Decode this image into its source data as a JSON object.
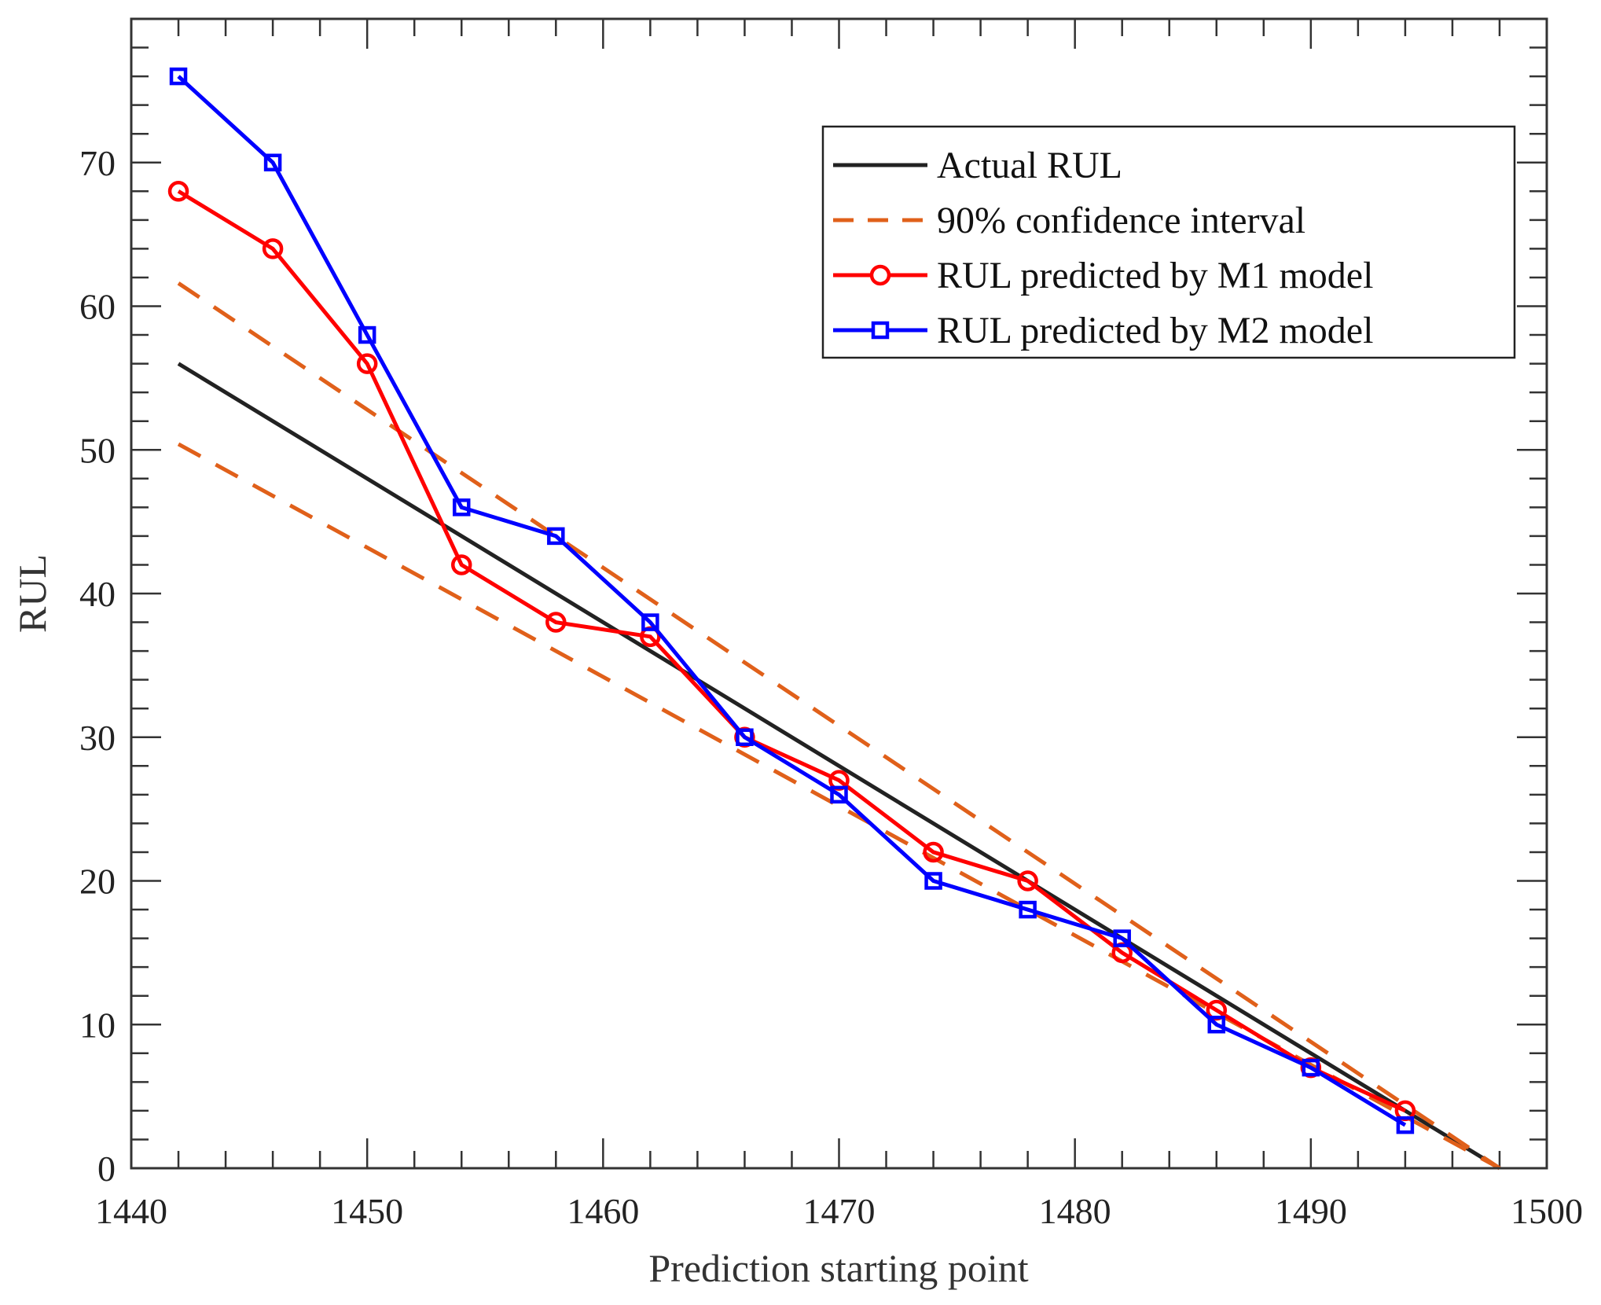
{
  "chart_data": {
    "type": "line",
    "title": "",
    "xlabel": "Prediction starting point",
    "ylabel": "RUL",
    "xlim": [
      1440,
      1500
    ],
    "ylim": [
      0,
      80
    ],
    "xticks": [
      1440,
      1450,
      1460,
      1470,
      1480,
      1490,
      1500
    ],
    "yticks": [
      0,
      10,
      20,
      30,
      40,
      50,
      60,
      70
    ],
    "grid": false,
    "legend_position": "top-right",
    "series": [
      {
        "name": "Actual RUL",
        "color": "#222222",
        "style": "solid",
        "marker": "none",
        "x": [
          1442,
          1498
        ],
        "y": [
          56,
          0
        ]
      },
      {
        "name": "90% confidence interval",
        "color": "#e0601a",
        "style": "dashed",
        "marker": "none",
        "x": [
          1442,
          1498
        ],
        "y": [
          61.6,
          0
        ]
      },
      {
        "name": "90% confidence interval (lower)",
        "legend": false,
        "color": "#e0601a",
        "style": "dashed",
        "marker": "none",
        "x": [
          1442,
          1498
        ],
        "y": [
          50.4,
          0
        ]
      },
      {
        "name": "RUL predicted by M1 model",
        "color": "#ff0000",
        "style": "solid",
        "marker": "circle",
        "x": [
          1442,
          1446,
          1450,
          1454,
          1458,
          1462,
          1466,
          1470,
          1474,
          1478,
          1482,
          1486,
          1490,
          1494
        ],
        "y": [
          68,
          64,
          56,
          42,
          38,
          37,
          30,
          27,
          22,
          20,
          15,
          11,
          7,
          4
        ]
      },
      {
        "name": "RUL predicted by M2 model",
        "color": "#0000ff",
        "style": "solid",
        "marker": "square",
        "x": [
          1442,
          1446,
          1450,
          1454,
          1458,
          1462,
          1466,
          1470,
          1474,
          1478,
          1482,
          1486,
          1490,
          1494
        ],
        "y": [
          76,
          70,
          58,
          46,
          44,
          38,
          30,
          26,
          20,
          18,
          16,
          10,
          7,
          3
        ]
      }
    ]
  }
}
